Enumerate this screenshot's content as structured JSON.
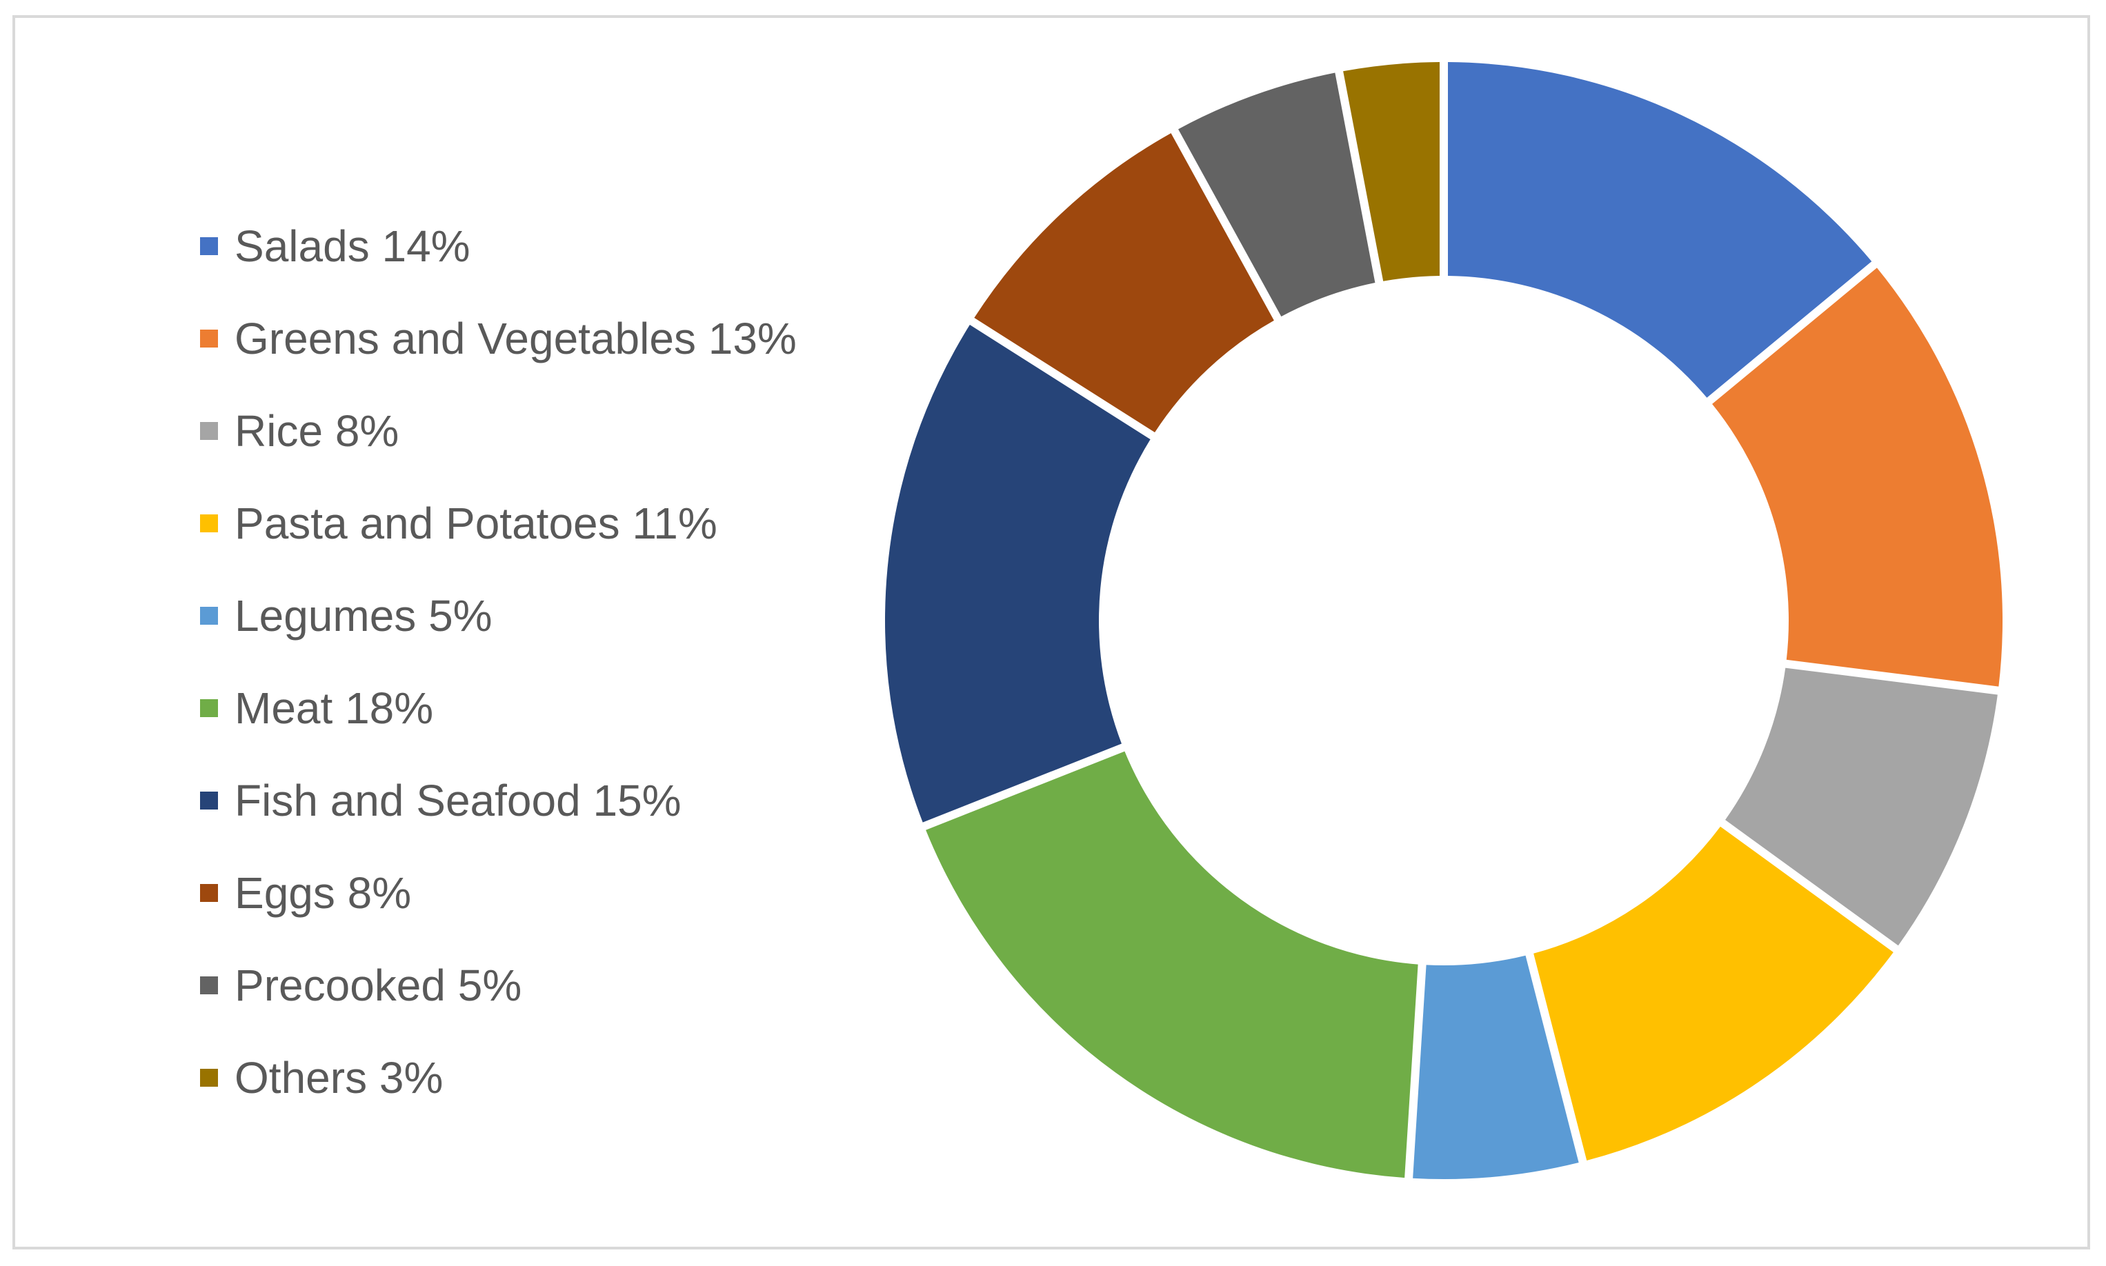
{
  "chart_data": {
    "type": "pie",
    "variant": "doughnut",
    "title": "",
    "legend_position": "left",
    "categories": [
      "Salads",
      "Greens and Vegetables",
      "Rice",
      "Pasta and Potatoes",
      "Legumes",
      "Meat",
      "Fish and Seafood",
      "Eggs",
      "Precooked",
      "Others"
    ],
    "values": [
      14,
      13,
      8,
      11,
      5,
      18,
      15,
      8,
      5,
      3
    ],
    "unit": "%",
    "legend_labels": [
      "Salads 14%",
      "Greens and Vegetables 13%",
      "Rice 8%",
      "Pasta and Potatoes 11%",
      "Legumes 5%",
      "Meat 18%",
      "Fish and Seafood 15%",
      "Eggs 8%",
      "Precooked 5%",
      "Others 3%"
    ],
    "colors": [
      "#4472C4",
      "#ED7D31",
      "#A5A5A5",
      "#FFC000",
      "#5B9BD5",
      "#70AD47",
      "#264478",
      "#9E480E",
      "#636363",
      "#997300"
    ]
  }
}
